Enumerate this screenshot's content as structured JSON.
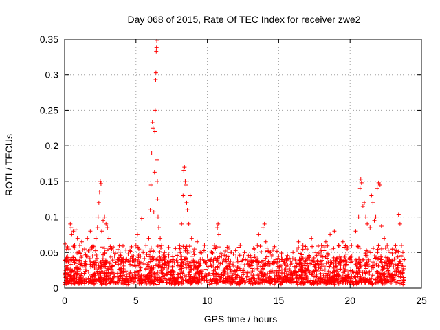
{
  "chart_data": {
    "type": "scatter",
    "title": "Day 068 of 2015, Rate Of TEC Index for receiver zwe2",
    "xlabel": "GPS time / hours",
    "ylabel": "ROTI / TECUs",
    "xlim": [
      0,
      25
    ],
    "ylim": [
      0,
      0.35
    ],
    "x_ticks": [
      0,
      5,
      10,
      15,
      20,
      25
    ],
    "x_tick_labels": [
      "0",
      "5",
      "10",
      "15",
      "20",
      "25"
    ],
    "y_ticks": [
      0,
      0.05,
      0.1,
      0.15,
      0.2,
      0.25,
      0.3,
      0.35
    ],
    "y_tick_labels": [
      "0",
      "0.05",
      "0.1",
      "0.15",
      "0.2",
      "0.25",
      "0.3",
      "0.35"
    ],
    "grid": true,
    "marker": "plus",
    "series": [
      {
        "name": "ROTI",
        "color": "#ff0000",
        "points": [
          [
            0.05,
            0.062
          ],
          [
            0.1,
            0.03
          ],
          [
            0.2,
            0.045
          ],
          [
            0.3,
            0.055
          ],
          [
            0.4,
            0.09
          ],
          [
            0.45,
            0.085
          ],
          [
            0.5,
            0.075
          ],
          [
            0.6,
            0.08
          ],
          [
            0.7,
            0.06
          ],
          [
            0.8,
            0.082
          ],
          [
            0.9,
            0.07
          ],
          [
            1.0,
            0.05
          ],
          [
            1.2,
            0.065
          ],
          [
            1.4,
            0.055
          ],
          [
            1.6,
            0.07
          ],
          [
            1.8,
            0.08
          ],
          [
            2.0,
            0.06
          ],
          [
            2.2,
            0.07
          ],
          [
            2.3,
            0.085
          ],
          [
            2.35,
            0.1
          ],
          [
            2.4,
            0.12
          ],
          [
            2.45,
            0.135
          ],
          [
            2.5,
            0.15
          ],
          [
            2.55,
            0.147
          ],
          [
            2.6,
            0.08
          ],
          [
            2.7,
            0.095
          ],
          [
            2.8,
            0.1
          ],
          [
            2.9,
            0.09
          ],
          [
            3.0,
            0.085
          ],
          [
            3.1,
            0.07
          ],
          [
            3.3,
            0.055
          ],
          [
            3.5,
            0.045
          ],
          [
            3.8,
            0.04
          ],
          [
            4.0,
            0.035
          ],
          [
            4.3,
            0.04
          ],
          [
            4.5,
            0.045
          ],
          [
            4.8,
            0.038
          ],
          [
            5.0,
            0.06
          ],
          [
            5.1,
            0.075
          ],
          [
            5.2,
            0.055
          ],
          [
            5.4,
            0.098
          ],
          [
            5.5,
            0.05
          ],
          [
            5.7,
            0.06
          ],
          [
            5.9,
            0.07
          ],
          [
            6.0,
            0.11
          ],
          [
            6.05,
            0.145
          ],
          [
            6.1,
            0.19
          ],
          [
            6.15,
            0.233
          ],
          [
            6.2,
            0.225
          ],
          [
            6.25,
            0.107
          ],
          [
            6.3,
            0.163
          ],
          [
            6.32,
            0.22
          ],
          [
            6.35,
            0.25
          ],
          [
            6.38,
            0.293
          ],
          [
            6.4,
            0.303
          ],
          [
            6.42,
            0.333
          ],
          [
            6.44,
            0.338
          ],
          [
            6.46,
            0.348
          ],
          [
            6.48,
            0.18
          ],
          [
            6.5,
            0.15
          ],
          [
            6.52,
            0.125
          ],
          [
            6.55,
            0.1
          ],
          [
            6.6,
            0.085
          ],
          [
            6.7,
            0.07
          ],
          [
            6.8,
            0.06
          ],
          [
            7.0,
            0.05
          ],
          [
            7.3,
            0.045
          ],
          [
            7.6,
            0.04
          ],
          [
            7.9,
            0.045
          ],
          [
            8.1,
            0.05
          ],
          [
            8.2,
            0.09
          ],
          [
            8.3,
            0.13
          ],
          [
            8.35,
            0.165
          ],
          [
            8.4,
            0.17
          ],
          [
            8.45,
            0.15
          ],
          [
            8.5,
            0.145
          ],
          [
            8.55,
            0.12
          ],
          [
            8.6,
            0.11
          ],
          [
            8.7,
            0.09
          ],
          [
            8.8,
            0.13
          ],
          [
            8.9,
            0.07
          ],
          [
            9.1,
            0.055
          ],
          [
            9.3,
            0.065
          ],
          [
            9.5,
            0.05
          ],
          [
            9.8,
            0.06
          ],
          [
            10.0,
            0.045
          ],
          [
            10.3,
            0.05
          ],
          [
            10.5,
            0.06
          ],
          [
            10.7,
            0.085
          ],
          [
            10.75,
            0.09
          ],
          [
            10.8,
            0.075
          ],
          [
            11.0,
            0.045
          ],
          [
            11.3,
            0.04
          ],
          [
            11.6,
            0.05
          ],
          [
            12.0,
            0.045
          ],
          [
            12.3,
            0.06
          ],
          [
            12.6,
            0.05
          ],
          [
            13.0,
            0.045
          ],
          [
            13.3,
            0.055
          ],
          [
            13.6,
            0.075
          ],
          [
            13.9,
            0.085
          ],
          [
            14.0,
            0.09
          ],
          [
            14.1,
            0.065
          ],
          [
            14.4,
            0.05
          ],
          [
            14.8,
            0.04
          ],
          [
            15.2,
            0.045
          ],
          [
            15.6,
            0.04
          ],
          [
            16.0,
            0.05
          ],
          [
            16.4,
            0.065
          ],
          [
            16.7,
            0.06
          ],
          [
            17.0,
            0.055
          ],
          [
            17.3,
            0.07
          ],
          [
            17.6,
            0.05
          ],
          [
            18.0,
            0.06
          ],
          [
            18.3,
            0.065
          ],
          [
            18.6,
            0.075
          ],
          [
            18.9,
            0.08
          ],
          [
            19.2,
            0.06
          ],
          [
            19.5,
            0.065
          ],
          [
            19.8,
            0.055
          ],
          [
            20.1,
            0.06
          ],
          [
            20.4,
            0.08
          ],
          [
            20.6,
            0.1
          ],
          [
            20.7,
            0.14
          ],
          [
            20.75,
            0.153
          ],
          [
            20.8,
            0.148
          ],
          [
            20.9,
            0.115
          ],
          [
            21.0,
            0.12
          ],
          [
            21.1,
            0.1
          ],
          [
            21.2,
            0.09
          ],
          [
            21.4,
            0.085
          ],
          [
            21.5,
            0.13
          ],
          [
            21.6,
            0.12
          ],
          [
            21.7,
            0.095
          ],
          [
            21.8,
            0.1
          ],
          [
            21.9,
            0.14
          ],
          [
            22.0,
            0.148
          ],
          [
            22.1,
            0.145
          ],
          [
            22.2,
            0.087
          ],
          [
            22.4,
            0.07
          ],
          [
            22.6,
            0.06
          ],
          [
            22.8,
            0.05
          ],
          [
            23.0,
            0.055
          ],
          [
            23.2,
            0.05
          ],
          [
            23.4,
            0.103
          ],
          [
            23.5,
            0.09
          ],
          [
            23.6,
            0.06
          ],
          [
            23.7,
            0.05
          ],
          [
            23.8,
            0.04
          ]
        ],
        "dense_band": {
          "x_range": [
            0,
            23.8
          ],
          "y_range": [
            0.005,
            0.04
          ],
          "note": "continuous dense mass of points near the baseline across the full day"
        }
      }
    ]
  }
}
